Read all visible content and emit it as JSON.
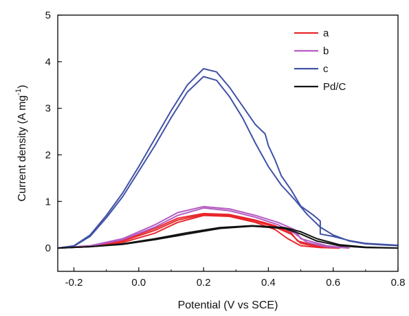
{
  "chart_data": {
    "type": "line",
    "xlabel": "Potential (V vs SCE)",
    "ylabel": "Current density (A mg",
    "ylabel_sup": "-1",
    "ylabel_end": ")",
    "xlim": [
      -0.25,
      0.8
    ],
    "ylim": [
      -0.5,
      5
    ],
    "x_ticks": [
      -0.2,
      0.0,
      0.2,
      0.4,
      0.6,
      0.8
    ],
    "x_tick_labels": [
      "-0.2",
      "0.0",
      "0.2",
      "0.4",
      "0.6",
      "0.8"
    ],
    "y_ticks": [
      0,
      1,
      2,
      3,
      4,
      5
    ],
    "y_tick_labels": [
      "0",
      "1",
      "2",
      "3",
      "4",
      "5"
    ],
    "grid": false,
    "legend_position": "top-right",
    "series": [
      {
        "name": "a",
        "color": "#e8262b",
        "curves": [
          [
            [
              -0.25,
              0.0
            ],
            [
              -0.15,
              0.03
            ],
            [
              -0.05,
              0.12
            ],
            [
              0.05,
              0.32
            ],
            [
              0.12,
              0.55
            ],
            [
              0.2,
              0.7
            ],
            [
              0.28,
              0.68
            ],
            [
              0.36,
              0.55
            ],
            [
              0.42,
              0.4
            ],
            [
              0.46,
              0.2
            ],
            [
              0.5,
              0.05
            ],
            [
              0.56,
              0.01
            ],
            [
              0.62,
              0.0
            ]
          ],
          [
            [
              -0.25,
              0.0
            ],
            [
              -0.15,
              0.04
            ],
            [
              -0.05,
              0.15
            ],
            [
              0.05,
              0.38
            ],
            [
              0.12,
              0.6
            ],
            [
              0.2,
              0.72
            ],
            [
              0.28,
              0.7
            ],
            [
              0.36,
              0.58
            ],
            [
              0.42,
              0.45
            ],
            [
              0.47,
              0.3
            ],
            [
              0.5,
              0.1
            ],
            [
              0.56,
              0.02
            ],
            [
              0.62,
              0.0
            ]
          ],
          [
            [
              -0.25,
              0.0
            ],
            [
              -0.15,
              0.05
            ],
            [
              -0.05,
              0.17
            ],
            [
              0.05,
              0.42
            ],
            [
              0.12,
              0.64
            ],
            [
              0.2,
              0.74
            ],
            [
              0.28,
              0.72
            ],
            [
              0.36,
              0.6
            ],
            [
              0.42,
              0.48
            ],
            [
              0.47,
              0.33
            ],
            [
              0.49,
              0.15
            ],
            [
              0.56,
              0.03
            ],
            [
              0.62,
              0.0
            ]
          ]
        ]
      },
      {
        "name": "b",
        "color": "#b45cc1",
        "curves": [
          [
            [
              -0.25,
              0.0
            ],
            [
              -0.15,
              0.04
            ],
            [
              -0.05,
              0.18
            ],
            [
              0.05,
              0.45
            ],
            [
              0.12,
              0.7
            ],
            [
              0.2,
              0.86
            ],
            [
              0.28,
              0.8
            ],
            [
              0.36,
              0.66
            ],
            [
              0.43,
              0.5
            ],
            [
              0.48,
              0.32
            ],
            [
              0.52,
              0.12
            ],
            [
              0.58,
              0.03
            ],
            [
              0.65,
              0.0
            ]
          ],
          [
            [
              -0.25,
              0.0
            ],
            [
              -0.15,
              0.05
            ],
            [
              -0.05,
              0.2
            ],
            [
              0.05,
              0.5
            ],
            [
              0.12,
              0.76
            ],
            [
              0.2,
              0.89
            ],
            [
              0.28,
              0.84
            ],
            [
              0.36,
              0.7
            ],
            [
              0.43,
              0.55
            ],
            [
              0.48,
              0.4
            ],
            [
              0.5,
              0.2
            ],
            [
              0.58,
              0.05
            ],
            [
              0.65,
              0.0
            ]
          ]
        ]
      },
      {
        "name": "c",
        "color": "#3f51a5",
        "curves": [
          [
            [
              -0.25,
              0.0
            ],
            [
              -0.2,
              0.04
            ],
            [
              -0.15,
              0.25
            ],
            [
              -0.1,
              0.65
            ],
            [
              -0.05,
              1.1
            ],
            [
              0.0,
              1.65
            ],
            [
              0.05,
              2.2
            ],
            [
              0.1,
              2.8
            ],
            [
              0.15,
              3.35
            ],
            [
              0.2,
              3.68
            ],
            [
              0.24,
              3.6
            ],
            [
              0.28,
              3.25
            ],
            [
              0.32,
              2.8
            ],
            [
              0.36,
              2.25
            ],
            [
              0.4,
              1.75
            ],
            [
              0.44,
              1.35
            ],
            [
              0.48,
              1.05
            ],
            [
              0.52,
              0.72
            ],
            [
              0.56,
              0.45
            ],
            [
              0.6,
              0.28
            ],
            [
              0.65,
              0.15
            ],
            [
              0.7,
              0.09
            ],
            [
              0.8,
              0.05
            ]
          ],
          [
            [
              -0.25,
              0.0
            ],
            [
              -0.2,
              0.05
            ],
            [
              -0.15,
              0.28
            ],
            [
              -0.1,
              0.7
            ],
            [
              -0.05,
              1.18
            ],
            [
              0.0,
              1.75
            ],
            [
              0.05,
              2.35
            ],
            [
              0.1,
              2.95
            ],
            [
              0.15,
              3.5
            ],
            [
              0.2,
              3.85
            ],
            [
              0.24,
              3.78
            ],
            [
              0.28,
              3.45
            ],
            [
              0.32,
              3.05
            ],
            [
              0.36,
              2.65
            ],
            [
              0.39,
              2.45
            ],
            [
              0.4,
              2.2
            ],
            [
              0.42,
              1.9
            ],
            [
              0.44,
              1.55
            ],
            [
              0.47,
              1.25
            ],
            [
              0.5,
              0.9
            ],
            [
              0.54,
              0.7
            ],
            [
              0.56,
              0.58
            ],
            [
              0.56,
              0.3
            ],
            [
              0.6,
              0.25
            ],
            [
              0.65,
              0.16
            ],
            [
              0.7,
              0.1
            ],
            [
              0.8,
              0.06
            ]
          ]
        ]
      },
      {
        "name": "Pd/C",
        "color": "#111111",
        "curves": [
          [
            [
              -0.25,
              0.0
            ],
            [
              -0.15,
              0.03
            ],
            [
              -0.05,
              0.08
            ],
            [
              0.05,
              0.18
            ],
            [
              0.15,
              0.3
            ],
            [
              0.25,
              0.42
            ],
            [
              0.35,
              0.47
            ],
            [
              0.45,
              0.42
            ],
            [
              0.5,
              0.3
            ],
            [
              0.55,
              0.15
            ],
            [
              0.62,
              0.05
            ],
            [
              0.7,
              0.01
            ],
            [
              0.8,
              0.0
            ]
          ],
          [
            [
              -0.25,
              0.0
            ],
            [
              -0.15,
              0.03
            ],
            [
              -0.05,
              0.09
            ],
            [
              0.05,
              0.2
            ],
            [
              0.15,
              0.33
            ],
            [
              0.25,
              0.44
            ],
            [
              0.35,
              0.48
            ],
            [
              0.45,
              0.44
            ],
            [
              0.5,
              0.35
            ],
            [
              0.55,
              0.2
            ],
            [
              0.62,
              0.07
            ],
            [
              0.7,
              0.02
            ],
            [
              0.8,
              0.0
            ]
          ]
        ]
      }
    ]
  }
}
